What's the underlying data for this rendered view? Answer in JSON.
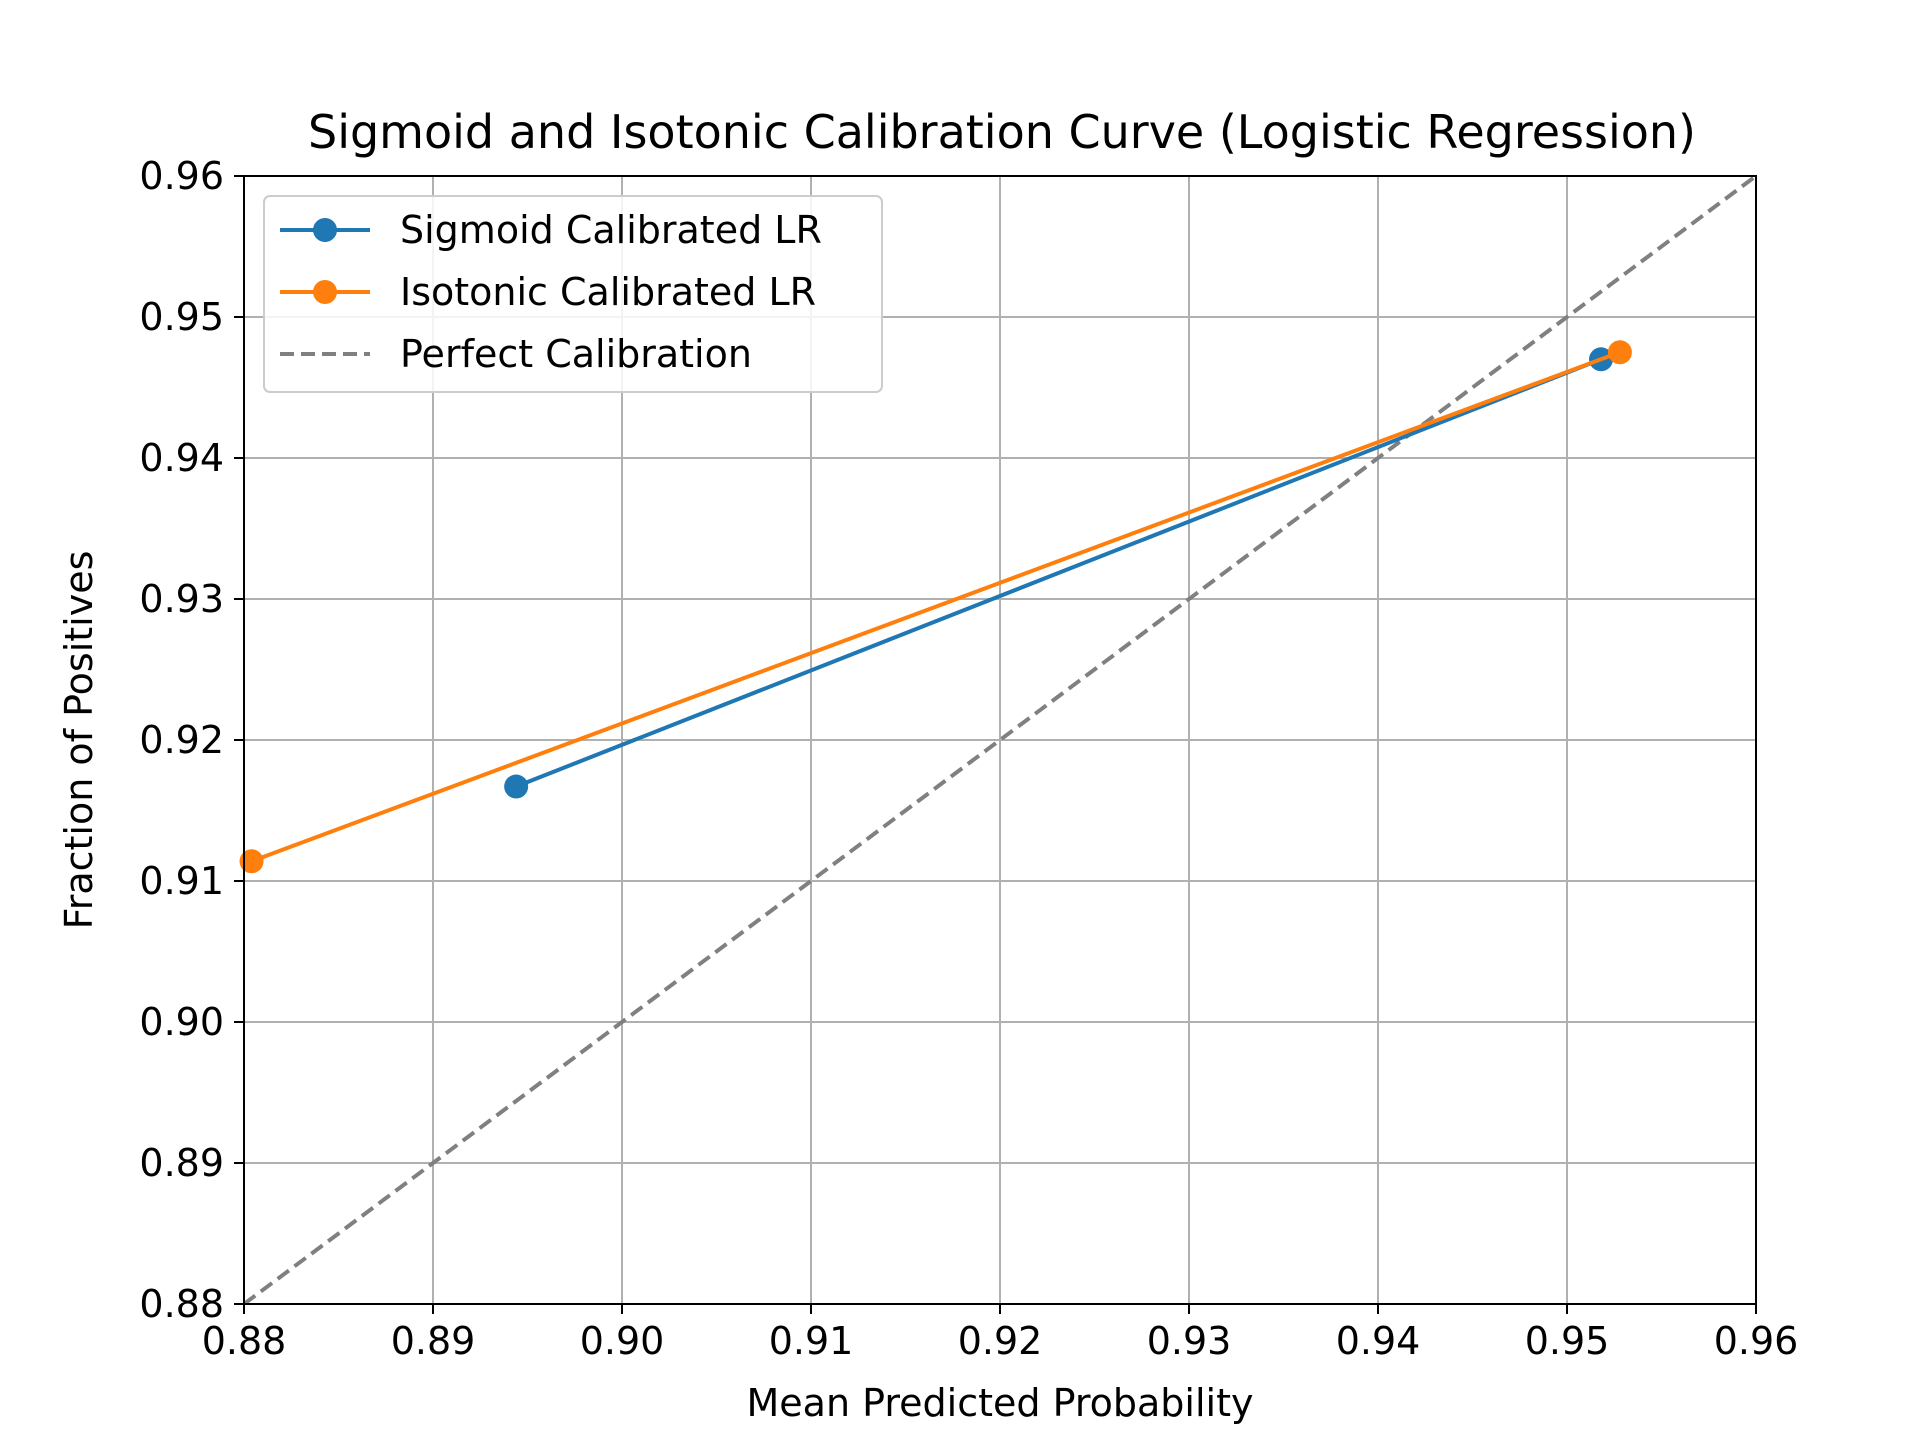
{
  "chart_data": {
    "type": "line",
    "title": "Sigmoid and Isotonic Calibration Curve (Logistic Regression)",
    "xlabel": "Mean Predicted Probability",
    "ylabel": "Fraction of Positives",
    "xlim": [
      0.88,
      0.96
    ],
    "ylim": [
      0.88,
      0.96
    ],
    "xticks": [
      "0.88",
      "0.89",
      "0.90",
      "0.91",
      "0.92",
      "0.93",
      "0.94",
      "0.95",
      "0.96"
    ],
    "yticks": [
      "0.88",
      "0.89",
      "0.90",
      "0.91",
      "0.92",
      "0.93",
      "0.94",
      "0.95",
      "0.96"
    ],
    "grid": true,
    "legend_position": "top-left",
    "series": [
      {
        "name": "Sigmoid Calibrated LR",
        "color": "#1f77b4",
        "style": "solid-markers",
        "x": [
          0.8944,
          0.9518
        ],
        "y": [
          0.9167,
          0.947
        ]
      },
      {
        "name": "Isotonic Calibrated LR",
        "color": "#ff7f0e",
        "style": "solid-markers",
        "x": [
          0.8804,
          0.9528
        ],
        "y": [
          0.9114,
          0.9475
        ]
      },
      {
        "name": "Perfect Calibration",
        "color": "#808080",
        "style": "dashed",
        "x": [
          0.88,
          0.96
        ],
        "y": [
          0.88,
          0.96
        ]
      }
    ]
  }
}
